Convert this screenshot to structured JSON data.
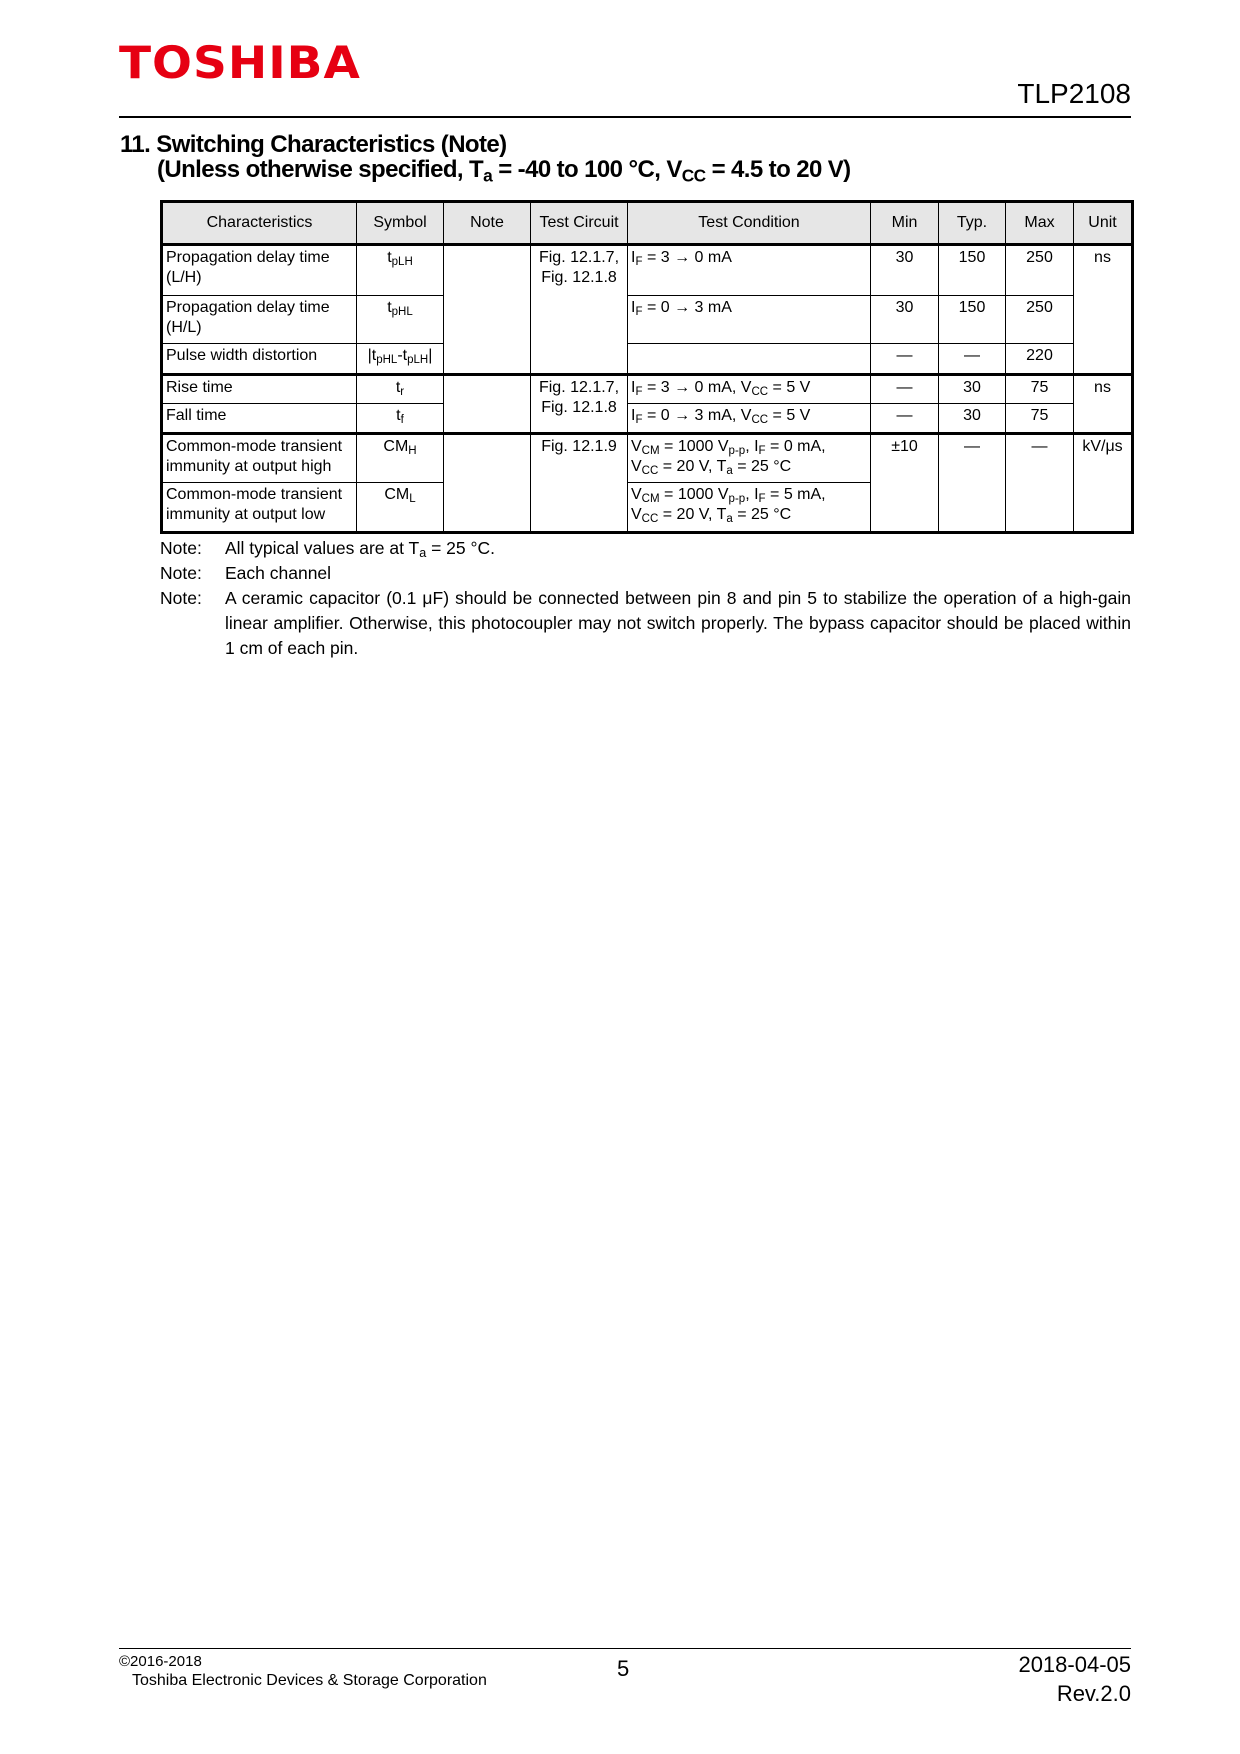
{
  "header": {
    "logo": "TOSHIBA",
    "part_number": "TLP2108"
  },
  "section": {
    "title": "11. Switching Characteristics (Note)",
    "cond_prefix": "(Unless otherwise specified, T",
    "cond_sub": "a",
    "cond_mid": " = -40 to 100 °C, V",
    "cond_sub2": "CC",
    "cond_suffix": " = 4.5 to 20 V)"
  },
  "table": {
    "headers": [
      "Characteristics",
      "Symbol",
      "Note",
      "Test Circuit",
      "Test Condition",
      "Min",
      "Typ.",
      "Max",
      "Unit"
    ],
    "rows": [
      {
        "char": "Propagation delay time (L/H)",
        "sym": "t",
        "sym_sub": "pLH",
        "circuit": "Fig. 12.1.7, Fig. 12.1.8",
        "cond": "I<sub>F</sub> = 3 → 0 mA",
        "min": "30",
        "typ": "150",
        "max": "250",
        "unit": "ns"
      },
      {
        "char": "Propagation delay time (H/L)",
        "sym": "t",
        "sym_sub": "pHL",
        "cond": "I<sub>F</sub> = 0 → 3 mA",
        "min": "30",
        "typ": "150",
        "max": "250"
      },
      {
        "char": "Pulse width distortion",
        "sym": "|t<sub>pHL</sub>-t<sub>pLH</sub>|",
        "cond": "",
        "min": "—",
        "typ": "—",
        "max": "220"
      },
      {
        "char": "Rise time",
        "sym": "t",
        "sym_sub": "r",
        "circuit": "Fig. 12.1.7, Fig. 12.1.8",
        "cond": "I<sub>F</sub> = 3 → 0 mA, V<sub>CC</sub> = 5 V",
        "min": "—",
        "typ": "30",
        "max": "75",
        "unit": "ns"
      },
      {
        "char": "Fall time",
        "sym": "t",
        "sym_sub": "f",
        "cond": "I<sub>F</sub> = 0 → 3 mA, V<sub>CC</sub> = 5 V",
        "min": "—",
        "typ": "30",
        "max": "75"
      },
      {
        "char": "Common-mode transient immunity at output high",
        "sym": "CM",
        "sym_sub": "H",
        "circuit": "Fig. 12.1.9",
        "cond": "V<sub>CM</sub> = 1000 V<sub>p-p</sub>, I<sub>F</sub> = 0 mA,<br>V<sub>CC</sub> = 20 V, T<sub>a</sub> = 25 °C",
        "min": "±10",
        "typ": "—",
        "max": "—",
        "unit": "kV/μs"
      },
      {
        "char": "Common-mode transient immunity at output low",
        "sym": "CM",
        "sym_sub": "L",
        "cond": "V<sub>CM</sub> = 1000 V<sub>p-p</sub>, I<sub>F</sub> = 5 mA,<br>V<sub>CC</sub> = 20 V, T<sub>a</sub> = 25 °C"
      }
    ]
  },
  "notes": [
    {
      "label": "Note:",
      "text": "All typical values are at T<sub>a</sub> = 25 °C."
    },
    {
      "label": "Note:",
      "text": "Each channel"
    },
    {
      "label": "Note:",
      "text": "A ceramic capacitor (0.1 μF) should be connected between pin 8 and pin 5 to stabilize the operation of a high-gain linear amplifier. Otherwise, this photocoupler may not switch properly. The bypass capacitor should be placed within 1 cm of each pin."
    }
  ],
  "footer": {
    "copyright": "©2016-2018",
    "company": "Toshiba Electronic Devices & Storage Corporation",
    "page": "5",
    "date": "2018-04-05",
    "revision": "Rev.2.0"
  }
}
